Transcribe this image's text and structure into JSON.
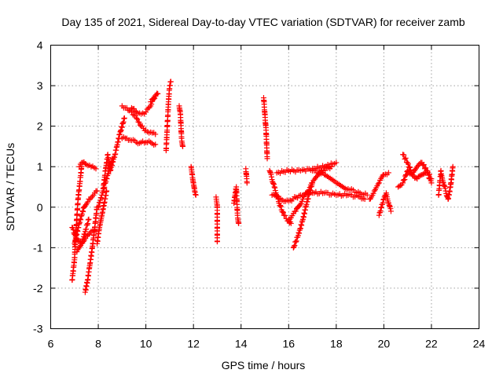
{
  "chart_data": {
    "type": "scatter",
    "title": "Day 135 of 2021, Sidereal Day-to-day VTEC variation (SDTVAR) for receiver zamb",
    "xlabel": "GPS time / hours",
    "ylabel": "SDTVAR / TECUs",
    "xlim": [
      6,
      24
    ],
    "ylim": [
      -3,
      4
    ],
    "grid": true,
    "marker": "+",
    "marker_color": "#ff0000",
    "xticks": [
      "6",
      "8",
      "10",
      "12",
      "14",
      "16",
      "18",
      "20",
      "22",
      "24"
    ],
    "yticks": [
      "-3",
      "-2",
      "-1",
      "0",
      "1",
      "2",
      "3",
      "4"
    ],
    "series": [
      {
        "name": "SDTVAR",
        "segments": [
          {
            "x": [
              6.9,
              7.0,
              7.05,
              7.15,
              7.3
            ],
            "y": [
              -1.8,
              -1.3,
              -0.7,
              0.2,
              1.0
            ]
          },
          {
            "x": [
              6.9,
              7.1,
              7.3,
              7.5,
              7.7,
              7.9
            ],
            "y": [
              -0.5,
              -0.8,
              -0.9,
              -0.7,
              -0.6,
              -0.6
            ]
          },
          {
            "x": [
              7.0,
              7.2,
              7.4,
              7.6,
              7.8,
              7.95
            ],
            "y": [
              -0.9,
              -0.4,
              0.0,
              0.2,
              0.3,
              0.4
            ]
          },
          {
            "x": [
              7.1,
              7.3,
              7.45,
              7.6
            ],
            "y": [
              -1.1,
              -0.9,
              -0.6,
              -0.3
            ]
          },
          {
            "x": [
              7.2,
              7.35,
              7.5,
              7.7,
              7.9
            ],
            "y": [
              1.0,
              1.1,
              1.05,
              1.0,
              0.95
            ]
          },
          {
            "x": [
              7.45,
              7.55,
              7.65,
              7.75,
              7.85,
              7.95
            ],
            "y": [
              -2.1,
              -1.8,
              -1.4,
              -1.0,
              -0.5,
              0.0
            ]
          },
          {
            "x": [
              7.95,
              8.05,
              8.15,
              8.25,
              8.35
            ],
            "y": [
              -0.9,
              -0.5,
              -0.2,
              0.1,
              0.4
            ]
          },
          {
            "x": [
              8.0,
              8.15,
              8.3,
              8.45,
              8.6
            ],
            "y": [
              0.0,
              0.3,
              0.6,
              0.9,
              1.2
            ]
          },
          {
            "x": [
              8.2,
              8.3,
              8.4,
              8.5
            ],
            "y": [
              0.4,
              0.9,
              1.3,
              1.0
            ]
          },
          {
            "x": [
              8.5,
              8.7,
              8.9,
              9.1
            ],
            "y": [
              0.9,
              1.3,
              1.8,
              2.2
            ]
          },
          {
            "x": [
              9.0,
              9.2,
              9.4,
              9.6,
              9.8,
              10.0,
              10.2,
              10.4
            ],
            "y": [
              2.5,
              2.45,
              2.35,
              2.2,
              2.0,
              1.9,
              1.85,
              1.8
            ]
          },
          {
            "x": [
              9.0,
              9.2,
              9.4,
              9.6,
              9.8,
              10.0,
              10.2,
              10.4
            ],
            "y": [
              1.7,
              1.7,
              1.65,
              1.6,
              1.6,
              1.6,
              1.6,
              1.55
            ]
          },
          {
            "x": [
              9.4,
              9.6,
              9.8,
              10.0,
              10.2,
              10.4
            ],
            "y": [
              2.45,
              2.35,
              2.3,
              2.35,
              2.5,
              2.75
            ]
          },
          {
            "x": [
              10.2,
              10.4,
              10.5
            ],
            "y": [
              2.6,
              2.75,
              2.8
            ]
          },
          {
            "x": [
              10.85,
              10.9,
              10.95,
              11.0,
              11.05
            ],
            "y": [
              1.4,
              2.0,
              2.6,
              3.0,
              3.1
            ]
          },
          {
            "x": [
              11.4,
              11.45,
              11.5,
              11.55
            ],
            "y": [
              2.5,
              2.3,
              1.7,
              1.5
            ]
          },
          {
            "x": [
              11.9,
              11.95,
              12.0,
              12.05,
              12.1
            ],
            "y": [
              1.0,
              0.8,
              0.6,
              0.4,
              0.3
            ]
          },
          {
            "x": [
              12.95,
              13.0,
              13.0
            ],
            "y": [
              0.25,
              0.05,
              -0.85
            ]
          },
          {
            "x": [
              13.7,
              13.75,
              13.8,
              13.85,
              13.9
            ],
            "y": [
              0.1,
              0.3,
              0.5,
              -0.2,
              -0.4
            ]
          },
          {
            "x": [
              14.2,
              14.25
            ],
            "y": [
              0.95,
              0.6
            ]
          },
          {
            "x": [
              14.95,
              15.0,
              15.05,
              15.1
            ],
            "y": [
              2.7,
              2.3,
              1.9,
              1.2
            ]
          },
          {
            "x": [
              15.2,
              15.4,
              15.6,
              15.8,
              16.0,
              16.1
            ],
            "y": [
              0.9,
              0.5,
              0.1,
              -0.2,
              -0.35,
              -0.4
            ]
          },
          {
            "x": [
              15.3,
              15.6,
              16.0,
              16.5,
              17.0,
              17.5,
              18.0,
              18.5,
              19.0,
              19.2
            ],
            "y": [
              0.3,
              0.2,
              0.15,
              0.3,
              0.35,
              0.35,
              0.3,
              0.3,
              0.25,
              0.2
            ]
          },
          {
            "x": [
              15.5,
              16.0,
              16.5,
              17.0,
              17.5,
              18.0
            ],
            "y": [
              0.85,
              0.9,
              0.9,
              0.95,
              1.0,
              1.1
            ]
          },
          {
            "x": [
              16.0,
              16.3,
              16.6,
              17.0,
              17.4,
              17.8
            ],
            "y": [
              -0.3,
              -0.1,
              0.2,
              0.6,
              0.9,
              1.0
            ]
          },
          {
            "x": [
              16.2,
              16.4,
              16.6,
              16.8,
              17.0
            ],
            "y": [
              -1.0,
              -0.7,
              -0.3,
              0.2,
              0.6
            ]
          },
          {
            "x": [
              17.0,
              17.5,
              18.0,
              18.5,
              19.0,
              19.3
            ],
            "y": [
              0.9,
              0.8,
              0.6,
              0.45,
              0.35,
              0.3
            ]
          },
          {
            "x": [
              19.4,
              19.6,
              19.8,
              20.0,
              20.2
            ],
            "y": [
              0.2,
              0.4,
              0.6,
              0.8,
              0.85
            ]
          },
          {
            "x": [
              19.8,
              19.9,
              20.0,
              20.1,
              20.2,
              20.3
            ],
            "y": [
              -0.2,
              0.0,
              0.2,
              0.35,
              0.1,
              -0.1
            ]
          },
          {
            "x": [
              20.6,
              20.8,
              21.0,
              21.2,
              21.4,
              21.6,
              21.8,
              22.0
            ],
            "y": [
              0.5,
              0.6,
              0.9,
              0.8,
              1.0,
              1.1,
              0.9,
              0.7
            ]
          },
          {
            "x": [
              20.8,
              21.0,
              21.2,
              21.4,
              21.6,
              21.8,
              22.0
            ],
            "y": [
              1.3,
              1.1,
              0.8,
              0.7,
              0.8,
              0.9,
              0.6
            ]
          },
          {
            "x": [
              22.3,
              22.4,
              22.5,
              22.6,
              22.7,
              22.8,
              22.9
            ],
            "y": [
              0.3,
              0.9,
              0.6,
              0.4,
              0.2,
              0.5,
              1.0
            ]
          }
        ]
      }
    ]
  }
}
